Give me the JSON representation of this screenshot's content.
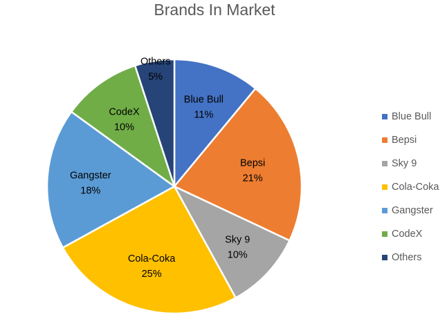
{
  "chart_data": {
    "type": "pie",
    "title": "Brands In Market",
    "legend_position": "right",
    "categories": [
      "Blue Bull",
      "Bepsi",
      "Sky 9",
      "Cola-Coka",
      "Gangster",
      "CodeX",
      "Others"
    ],
    "values": [
      11,
      21,
      10,
      25,
      18,
      10,
      5
    ],
    "value_labels": [
      "11%",
      "21%",
      "10%",
      "25%",
      "18%",
      "10%",
      "5%"
    ],
    "colors": [
      "#4472C4",
      "#ED7D31",
      "#A5A5A5",
      "#FFC000",
      "#5B9BD5",
      "#70AD47",
      "#264478"
    ]
  }
}
